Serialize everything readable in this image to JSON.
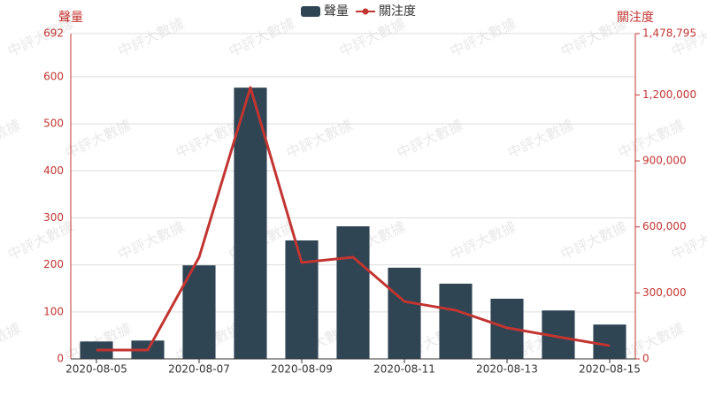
{
  "chart_data": {
    "type": "bar-line",
    "watermark": "中評大數據",
    "y_label": "聲量",
    "y2_label": "關注度",
    "categories": [
      "2020-08-05",
      null,
      "2020-08-07",
      null,
      "2020-08-09",
      null,
      "2020-08-11",
      null,
      "2020-08-13",
      null,
      "2020-08-15"
    ],
    "series": [
      {
        "name": "聲量",
        "type": "bar",
        "color": "#2f4554",
        "values": [
          37,
          39,
          199,
          577,
          252,
          282,
          194,
          160,
          128,
          103,
          73
        ]
      },
      {
        "name": "關注度",
        "type": "line",
        "axis": "y2",
        "color": "#c23531",
        "values": [
          40000,
          40000,
          462000,
          1234000,
          438000,
          462000,
          261000,
          221000,
          141000,
          100000,
          60000
        ]
      }
    ],
    "ylim": [
      0,
      692
    ],
    "yticks": [
      0,
      100,
      200,
      300,
      400,
      500,
      600,
      692
    ],
    "y2lim": [
      0,
      1478795
    ],
    "y2ticks": [
      0,
      {
        "value": 300000,
        "label": "300,000"
      },
      {
        "value": 600000,
        "label": "600,000"
      },
      {
        "value": 900000,
        "label": "900,000"
      },
      {
        "value": 1200000,
        "label": "1,200,000"
      },
      {
        "value": 1478795,
        "label": "1,478,795"
      }
    ],
    "axis_color": "#c23531",
    "grid": true,
    "legend": "top"
  }
}
